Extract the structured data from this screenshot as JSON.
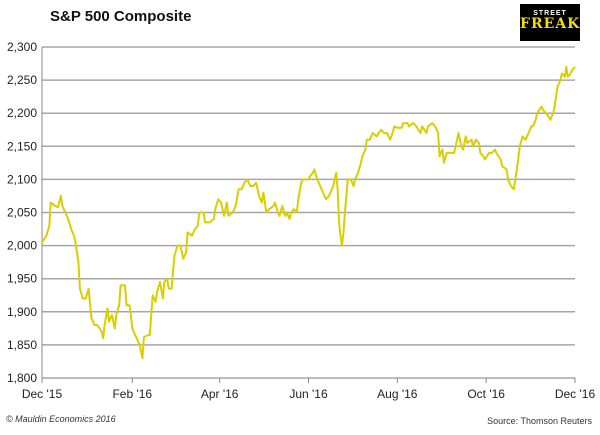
{
  "logo": {
    "line1": "STREET",
    "line2": "FREAK"
  },
  "footer": {
    "copyright": "© Mauldin Economics 2016",
    "source": "Source: Thomson Reuters"
  },
  "chart_data": {
    "type": "line",
    "title": "S&P 500 Composite",
    "xlabel": "",
    "ylabel": "",
    "ylim": [
      1800,
      2300
    ],
    "xlim": [
      "2015-12-01",
      "2016-12-01"
    ],
    "grid": "horizontal",
    "line_color": "#d9cf00",
    "y_ticks": [
      "1,800",
      "1,850",
      "1,900",
      "1,950",
      "2,000",
      "2,050",
      "2,100",
      "2,150",
      "2,200",
      "2,250",
      "2,300"
    ],
    "x_ticks": [
      {
        "date": "2015-12-01",
        "label": "Dec '15"
      },
      {
        "date": "2016-02-01",
        "label": "Feb '16"
      },
      {
        "date": "2016-04-01",
        "label": "Apr '16"
      },
      {
        "date": "2016-06-01",
        "label": "Jun '16"
      },
      {
        "date": "2016-08-01",
        "label": "Aug '16"
      },
      {
        "date": "2016-10-01",
        "label": "Oct '16"
      },
      {
        "date": "2016-12-01",
        "label": "Dec '16"
      }
    ],
    "series": [
      {
        "points": [
          [
            "2015-12-01",
            2005
          ],
          [
            "2015-12-04",
            2015
          ],
          [
            "2015-12-06",
            2030
          ],
          [
            "2015-12-07",
            2065
          ],
          [
            "2015-12-10",
            2060
          ],
          [
            "2015-12-12",
            2058
          ],
          [
            "2015-12-14",
            2075
          ],
          [
            "2015-12-15",
            2060
          ],
          [
            "2015-12-17",
            2050
          ],
          [
            "2015-12-19",
            2040
          ],
          [
            "2015-12-21",
            2025
          ],
          [
            "2015-12-23",
            2015
          ],
          [
            "2015-12-24",
            2005
          ],
          [
            "2015-12-26",
            1975
          ],
          [
            "2015-12-27",
            1935
          ],
          [
            "2015-12-29",
            1920
          ],
          [
            "2015-12-31",
            1920
          ],
          [
            "2016-01-02",
            1935
          ],
          [
            "2016-01-03",
            1910
          ],
          [
            "2016-01-04",
            1890
          ],
          [
            "2016-01-06",
            1880
          ],
          [
            "2016-01-08",
            1880
          ],
          [
            "2016-01-11",
            1870
          ],
          [
            "2016-01-12",
            1860
          ],
          [
            "2016-01-13",
            1880
          ],
          [
            "2016-01-15",
            1905
          ],
          [
            "2016-01-16",
            1885
          ],
          [
            "2016-01-18",
            1895
          ],
          [
            "2016-01-20",
            1875
          ],
          [
            "2016-01-21",
            1895
          ],
          [
            "2016-01-23",
            1910
          ],
          [
            "2016-01-24",
            1940
          ],
          [
            "2016-01-27",
            1940
          ],
          [
            "2016-01-28",
            1910
          ],
          [
            "2016-01-30",
            1910
          ],
          [
            "2016-01-31",
            1895
          ],
          [
            "2016-02-01",
            1875
          ],
          [
            "2016-02-04",
            1860
          ],
          [
            "2016-02-06",
            1850
          ],
          [
            "2016-02-08",
            1830
          ],
          [
            "2016-02-09",
            1862
          ],
          [
            "2016-02-12",
            1865
          ],
          [
            "2016-02-13",
            1865
          ],
          [
            "2016-02-15",
            1925
          ],
          [
            "2016-02-17",
            1915
          ],
          [
            "2016-02-18",
            1930
          ],
          [
            "2016-02-20",
            1945
          ],
          [
            "2016-02-22",
            1920
          ],
          [
            "2016-02-23",
            1945
          ],
          [
            "2016-02-25",
            1950
          ],
          [
            "2016-02-26",
            1935
          ],
          [
            "2016-02-28",
            1935
          ],
          [
            "2016-03-01",
            1985
          ],
          [
            "2016-03-03",
            2000
          ],
          [
            "2016-03-05",
            2000
          ],
          [
            "2016-03-07",
            1980
          ],
          [
            "2016-03-09",
            1990
          ],
          [
            "2016-03-10",
            2020
          ],
          [
            "2016-03-13",
            2015
          ],
          [
            "2016-03-15",
            2025
          ],
          [
            "2016-03-17",
            2030
          ],
          [
            "2016-03-18",
            2050
          ],
          [
            "2016-03-21",
            2050
          ],
          [
            "2016-03-22",
            2035
          ],
          [
            "2016-03-25",
            2035
          ],
          [
            "2016-03-28",
            2040
          ],
          [
            "2016-03-29",
            2055
          ],
          [
            "2016-03-31",
            2070
          ],
          [
            "2016-04-02",
            2065
          ],
          [
            "2016-04-04",
            2045
          ],
          [
            "2016-04-06",
            2065
          ],
          [
            "2016-04-07",
            2045
          ],
          [
            "2016-04-10",
            2050
          ],
          [
            "2016-04-12",
            2060
          ],
          [
            "2016-04-14",
            2085
          ],
          [
            "2016-04-16",
            2085
          ],
          [
            "2016-04-18",
            2095
          ],
          [
            "2016-04-20",
            2100
          ],
          [
            "2016-04-22",
            2090
          ],
          [
            "2016-04-24",
            2090
          ],
          [
            "2016-04-26",
            2095
          ],
          [
            "2016-04-28",
            2075
          ],
          [
            "2016-04-30",
            2065
          ],
          [
            "2016-05-01",
            2080
          ],
          [
            "2016-05-03",
            2050
          ],
          [
            "2016-05-05",
            2055
          ],
          [
            "2016-05-08",
            2060
          ],
          [
            "2016-05-09",
            2065
          ],
          [
            "2016-05-11",
            2050
          ],
          [
            "2016-05-12",
            2045
          ],
          [
            "2016-05-14",
            2060
          ],
          [
            "2016-05-16",
            2045
          ],
          [
            "2016-05-17",
            2050
          ],
          [
            "2016-05-19",
            2040
          ],
          [
            "2016-05-20",
            2050
          ],
          [
            "2016-05-22",
            2055
          ],
          [
            "2016-05-24",
            2050
          ],
          [
            "2016-05-25",
            2070
          ],
          [
            "2016-05-27",
            2095
          ],
          [
            "2016-05-28",
            2100
          ],
          [
            "2016-05-30",
            2100
          ],
          [
            "2016-06-01",
            2100
          ],
          [
            "2016-06-02",
            2105
          ],
          [
            "2016-06-04",
            2110
          ],
          [
            "2016-06-05",
            2115
          ],
          [
            "2016-06-07",
            2100
          ],
          [
            "2016-06-09",
            2090
          ],
          [
            "2016-06-11",
            2080
          ],
          [
            "2016-06-13",
            2070
          ],
          [
            "2016-06-15",
            2075
          ],
          [
            "2016-06-17",
            2085
          ],
          [
            "2016-06-18",
            2090
          ],
          [
            "2016-06-20",
            2110
          ],
          [
            "2016-06-21",
            2085
          ],
          [
            "2016-06-22",
            2035
          ],
          [
            "2016-06-23",
            2015
          ],
          [
            "2016-06-24",
            2000
          ],
          [
            "2016-06-25",
            2020
          ],
          [
            "2016-06-26",
            2050
          ],
          [
            "2016-06-28",
            2100
          ],
          [
            "2016-06-30",
            2100
          ],
          [
            "2016-07-02",
            2090
          ],
          [
            "2016-07-03",
            2100
          ],
          [
            "2016-07-05",
            2110
          ],
          [
            "2016-07-07",
            2125
          ],
          [
            "2016-07-08",
            2135
          ],
          [
            "2016-07-10",
            2145
          ],
          [
            "2016-07-11",
            2160
          ],
          [
            "2016-07-13",
            2160
          ],
          [
            "2016-07-15",
            2170
          ],
          [
            "2016-07-18",
            2165
          ],
          [
            "2016-07-19",
            2170
          ],
          [
            "2016-07-21",
            2175
          ],
          [
            "2016-07-23",
            2170
          ],
          [
            "2016-07-25",
            2170
          ],
          [
            "2016-07-27",
            2160
          ],
          [
            "2016-07-28",
            2165
          ],
          [
            "2016-07-30",
            2180
          ],
          [
            "2016-08-01",
            2178
          ],
          [
            "2016-08-04",
            2178
          ],
          [
            "2016-08-05",
            2185
          ],
          [
            "2016-08-08",
            2185
          ],
          [
            "2016-08-09",
            2180
          ],
          [
            "2016-08-12",
            2185
          ],
          [
            "2016-08-14",
            2180
          ],
          [
            "2016-08-17",
            2170
          ],
          [
            "2016-08-18",
            2180
          ],
          [
            "2016-08-21",
            2170
          ],
          [
            "2016-08-22",
            2180
          ],
          [
            "2016-08-25",
            2185
          ],
          [
            "2016-08-27",
            2180
          ],
          [
            "2016-08-29",
            2170
          ],
          [
            "2016-08-30",
            2135
          ],
          [
            "2016-09-01",
            2145
          ],
          [
            "2016-09-02",
            2125
          ],
          [
            "2016-09-04",
            2140
          ],
          [
            "2016-09-06",
            2140
          ],
          [
            "2016-09-09",
            2140
          ],
          [
            "2016-09-10",
            2150
          ],
          [
            "2016-09-12",
            2170
          ],
          [
            "2016-09-14",
            2150
          ],
          [
            "2016-09-15",
            2145
          ],
          [
            "2016-09-17",
            2165
          ],
          [
            "2016-09-18",
            2155
          ],
          [
            "2016-09-21",
            2160
          ],
          [
            "2016-09-22",
            2150
          ],
          [
            "2016-09-24",
            2160
          ],
          [
            "2016-09-26",
            2155
          ],
          [
            "2016-09-27",
            2140
          ],
          [
            "2016-09-29",
            2135
          ],
          [
            "2016-09-30",
            2130
          ],
          [
            "2016-10-03",
            2140
          ],
          [
            "2016-10-05",
            2140
          ],
          [
            "2016-10-07",
            2145
          ],
          [
            "2016-10-08",
            2140
          ],
          [
            "2016-10-11",
            2130
          ],
          [
            "2016-10-12",
            2120
          ],
          [
            "2016-10-15",
            2115
          ],
          [
            "2016-10-16",
            2100
          ],
          [
            "2016-10-18",
            2090
          ],
          [
            "2016-10-20",
            2085
          ],
          [
            "2016-10-21",
            2100
          ],
          [
            "2016-10-23",
            2130
          ],
          [
            "2016-10-24",
            2150
          ],
          [
            "2016-10-26",
            2165
          ],
          [
            "2016-10-28",
            2160
          ],
          [
            "2016-10-30",
            2170
          ],
          [
            "2016-11-01",
            2180
          ],
          [
            "2016-11-02",
            2180
          ],
          [
            "2016-11-04",
            2190
          ],
          [
            "2016-11-05",
            2200
          ],
          [
            "2016-11-08",
            2210
          ],
          [
            "2016-11-09",
            2205
          ],
          [
            "2016-11-11",
            2200
          ],
          [
            "2016-11-13",
            2195
          ],
          [
            "2016-11-14",
            2190
          ],
          [
            "2016-11-16",
            2200
          ],
          [
            "2016-11-17",
            2210
          ],
          [
            "2016-11-19",
            2240
          ],
          [
            "2016-11-21",
            2250
          ],
          [
            "2016-11-22",
            2260
          ],
          [
            "2016-11-24",
            2255
          ],
          [
            "2016-11-25",
            2270
          ],
          [
            "2016-11-26",
            2255
          ],
          [
            "2016-11-28",
            2260
          ],
          [
            "2016-11-29",
            2265
          ],
          [
            "2016-12-01",
            2270
          ]
        ]
      }
    ]
  }
}
